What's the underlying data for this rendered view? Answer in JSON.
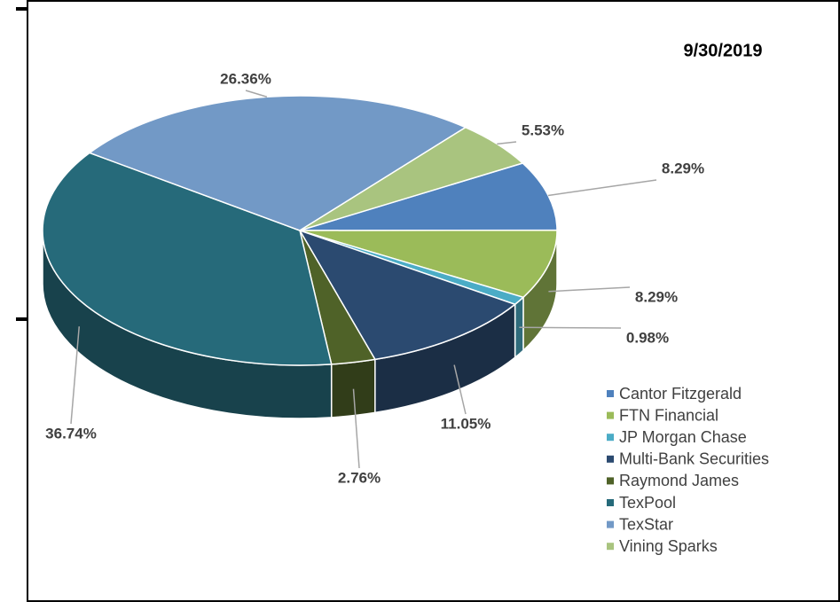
{
  "chart_data": {
    "type": "pie",
    "title": "9/30/2019",
    "categories": [
      "Cantor Fitzgerald",
      "FTN Financial",
      "JP Morgan Chase",
      "Multi-Bank Securities",
      "Raymond James",
      "TexPool",
      "TexStar",
      "Vining Sparks"
    ],
    "values": [
      8.29,
      8.29,
      0.98,
      11.05,
      2.76,
      36.74,
      26.36,
      5.53
    ],
    "value_labels": [
      "8.29%",
      "8.29%",
      "0.98%",
      "11.05%",
      "2.76%",
      "36.74%",
      "26.36%",
      "5.53%"
    ],
    "colors": [
      "#4f81bd",
      "#9bbb59",
      "#4bacc6",
      "#2b4a70",
      "#4f6228",
      "#266a7a",
      "#7299c6",
      "#a9c47f"
    ],
    "legend": "lower right"
  }
}
